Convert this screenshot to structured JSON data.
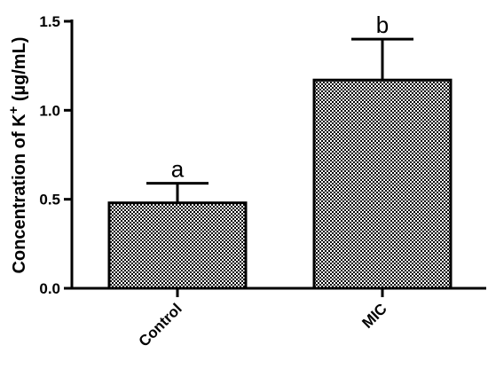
{
  "chart_data": {
    "type": "bar",
    "categories": [
      "Control",
      "MIC"
    ],
    "values": [
      0.48,
      1.17
    ],
    "errors": [
      0.11,
      0.23
    ],
    "significance": [
      "a",
      "b"
    ],
    "title": "",
    "xlabel": "",
    "ylabel": {
      "prefix": "Concentration of K",
      "superscript": "+",
      "suffix": " (µg/mL)"
    },
    "ylim": [
      0,
      1.5
    ],
    "yticks": [
      "0.0",
      "0.5",
      "1.0",
      "1.5"
    ],
    "ytick_values": [
      0,
      0.5,
      1.0,
      1.5
    ],
    "grid": false,
    "legend": "none",
    "bar_fill": "checkerboard-grey",
    "colors": {
      "axis": "#000000",
      "bar_dark": "#000000",
      "bar_light": "#ffffff"
    }
  }
}
